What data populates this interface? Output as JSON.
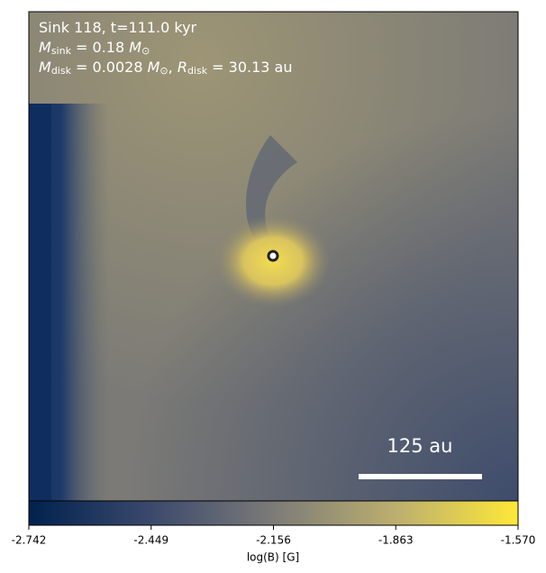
{
  "chart_data": {
    "type": "image",
    "colormap": "cividis",
    "annotations": [
      [
        {
          "text": "Sink 118, t=111.0 kyr"
        }
      ],
      [
        {
          "text": "M",
          "italic": true
        },
        {
          "text": "sink",
          "sub": true
        },
        {
          "text": " = 0.18 "
        },
        {
          "text": "M",
          "italic": true
        },
        {
          "text": "⊙",
          "sub": true
        }
      ],
      [
        {
          "text": "M",
          "italic": true
        },
        {
          "text": "disk",
          "sub": true
        },
        {
          "text": " = 0.0028 "
        },
        {
          "text": "M",
          "italic": true
        },
        {
          "text": "⊙",
          "sub": true
        },
        {
          "text": ", "
        },
        {
          "text": "R",
          "italic": true
        },
        {
          "text": "disk",
          "sub": true
        },
        {
          "text": " = 30.13 au"
        }
      ]
    ],
    "scale_bar_label": "125 au",
    "colorbar": {
      "label": "log(B) [G]",
      "lim": [
        -2.742,
        -1.57
      ],
      "ticks": [
        -2.742,
        -2.449,
        -2.156,
        -1.863,
        {
          "value": -1.57,
          "label": "-1.570"
        }
      ]
    }
  }
}
